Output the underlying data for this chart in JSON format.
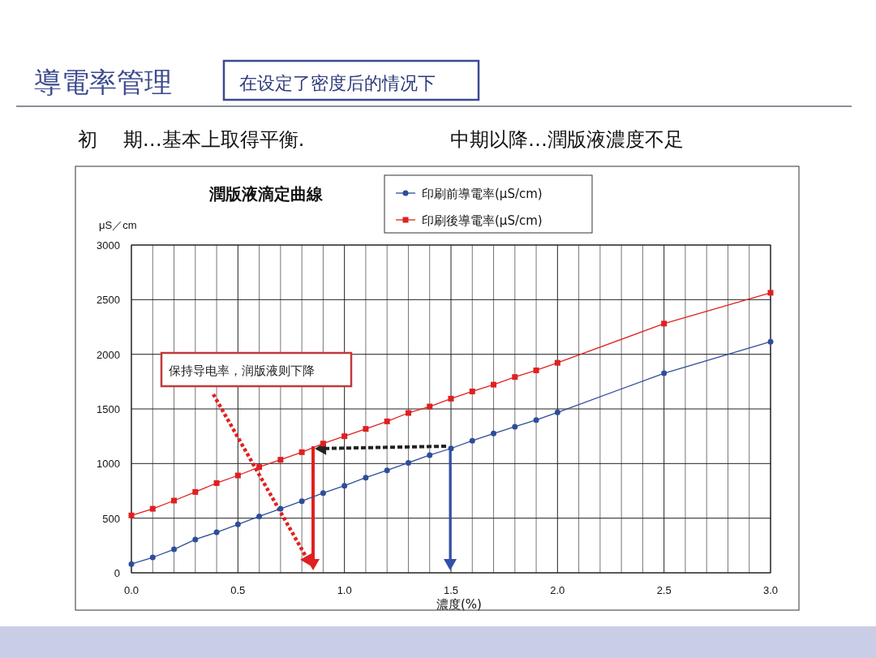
{
  "chart_data": {
    "type": "line",
    "title": "潤版液滴定曲線",
    "xlabel": "濃度(%)",
    "ylabel": "μS／cm",
    "annotations": [
      "導電率管理",
      "在设定了密度后的情况下",
      "初　 期…基本上取得平衡.",
      "中期以降…潤版液濃度不足",
      "保持导电率，润版液则下降"
    ],
    "x": [
      0.0,
      0.1,
      0.2,
      0.3,
      0.4,
      0.5,
      0.6,
      0.7,
      0.8,
      0.9,
      1.0,
      1.1,
      1.2,
      1.3,
      1.4,
      1.5,
      1.6,
      1.7,
      1.8,
      1.9,
      2.0,
      2.5,
      3.0
    ],
    "series": [
      {
        "name": "印刷前導電率(μS/cm)",
        "color": "#2e4d9a",
        "marker": "circle",
        "values": [
          80,
          141,
          215,
          305,
          371,
          443,
          517,
          586,
          656,
          730,
          797,
          871,
          938,
          1007,
          1077,
          1138,
          1209,
          1275,
          1337,
          1398,
          1468,
          1826,
          2115
        ]
      },
      {
        "name": "印刷後導電率(μS/cm)",
        "color": "#e02020",
        "marker": "square",
        "values": [
          525,
          586,
          661,
          740,
          821,
          891,
          968,
          1035,
          1104,
          1183,
          1250,
          1317,
          1386,
          1463,
          1522,
          1594,
          1660,
          1722,
          1792,
          1853,
          1922,
          2281,
          2563
        ]
      }
    ],
    "xlim": [
      0,
      3
    ],
    "ylim": [
      0,
      3000
    ],
    "xticks": [
      {
        "value": 0,
        "label": "0.0"
      },
      {
        "value": 0.1,
        "label": null
      },
      {
        "value": 0.2,
        "label": null
      },
      {
        "value": 0.3,
        "label": null
      },
      {
        "value": 0.4,
        "label": null
      },
      {
        "value": 0.5,
        "label": "0.5"
      },
      {
        "value": 0.6,
        "label": null
      },
      {
        "value": 0.7,
        "label": null
      },
      {
        "value": 0.8,
        "label": null
      },
      {
        "value": 0.9,
        "label": null
      },
      {
        "value": 1,
        "label": "1.0"
      },
      {
        "value": 1.1,
        "label": null
      },
      {
        "value": 1.2,
        "label": null
      },
      {
        "value": 1.3,
        "label": null
      },
      {
        "value": 1.4,
        "label": null
      },
      {
        "value": 1.5,
        "label": "1.5"
      },
      {
        "value": 1.6,
        "label": null
      },
      {
        "value": 1.7,
        "label": null
      },
      {
        "value": 1.8,
        "label": null
      },
      {
        "value": 1.9,
        "label": null
      },
      {
        "value": 2,
        "label": "2.0"
      },
      {
        "value": 2.1,
        "label": null
      },
      {
        "value": 2.2,
        "label": null
      },
      {
        "value": 2.3,
        "label": null
      },
      {
        "value": 2.4,
        "label": null
      },
      {
        "value": 2.5,
        "label": "2.5"
      },
      {
        "value": 2.6,
        "label": null
      },
      {
        "value": 2.7,
        "label": null
      },
      {
        "value": 2.8,
        "label": null
      },
      {
        "value": 2.9,
        "label": null
      },
      {
        "value": 3,
        "label": "3.0"
      }
    ],
    "yticks": [
      0,
      500,
      1000,
      1500,
      2000,
      2500,
      3000
    ],
    "grid": true,
    "legend": "top"
  }
}
